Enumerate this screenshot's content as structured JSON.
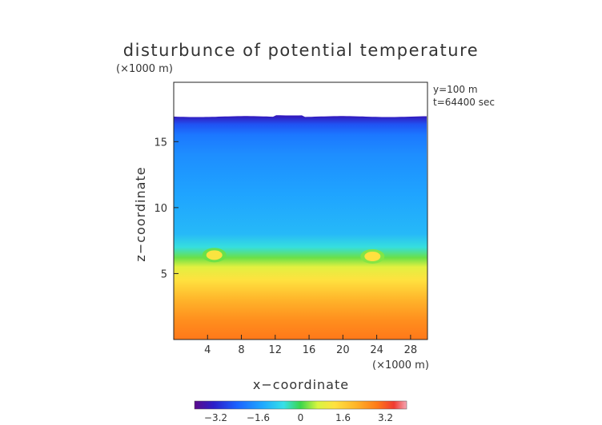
{
  "chart_data": {
    "type": "heatmap",
    "title": "disturbunce of potential temperature",
    "z_unit": "(×1000 m)",
    "x_unit": "(×1000 m)",
    "xlabel": "x−coordinate",
    "ylabel": "z−coordinate",
    "annotations": [
      "y=100 m",
      "t=64400 sec"
    ],
    "xlim": [
      0,
      30
    ],
    "ylim": [
      0,
      19.5
    ],
    "x_ticks": [
      4,
      8,
      12,
      16,
      20,
      24,
      28
    ],
    "x_tick_labels": [
      "4",
      "8",
      "12",
      "16",
      "20",
      "24",
      "28"
    ],
    "y_ticks": [
      5,
      10,
      15
    ],
    "y_tick_labels": [
      "5",
      "10",
      "15"
    ],
    "top_boundary_z": 16.9,
    "colorbar": {
      "range": [
        -4.0,
        4.0
      ],
      "ticks": [
        -3.2,
        -1.6,
        0,
        1.6,
        3.2
      ],
      "tick_labels": [
        "−3.2",
        "−1.6",
        "0",
        "1.6",
        "3.2"
      ]
    },
    "profile": [
      {
        "z": 0.0,
        "value": 2.9
      },
      {
        "z": 1.5,
        "value": 2.6
      },
      {
        "z": 3.0,
        "value": 2.1
      },
      {
        "z": 4.5,
        "value": 1.3
      },
      {
        "z": 5.5,
        "value": 0.8
      },
      {
        "z": 6.2,
        "value": 0.2
      },
      {
        "z": 7.0,
        "value": -0.6
      },
      {
        "z": 8.0,
        "value": -1.2
      },
      {
        "z": 11.0,
        "value": -1.5
      },
      {
        "z": 14.0,
        "value": -1.8
      },
      {
        "z": 15.5,
        "value": -2.1
      },
      {
        "z": 16.3,
        "value": -2.6
      },
      {
        "z": 16.9,
        "value": -3.4
      }
    ],
    "warm_bubbles": [
      {
        "x": 4.8,
        "z": 6.4,
        "value": 1.2
      },
      {
        "x": 23.5,
        "z": 6.3,
        "value": 1.3
      }
    ]
  }
}
